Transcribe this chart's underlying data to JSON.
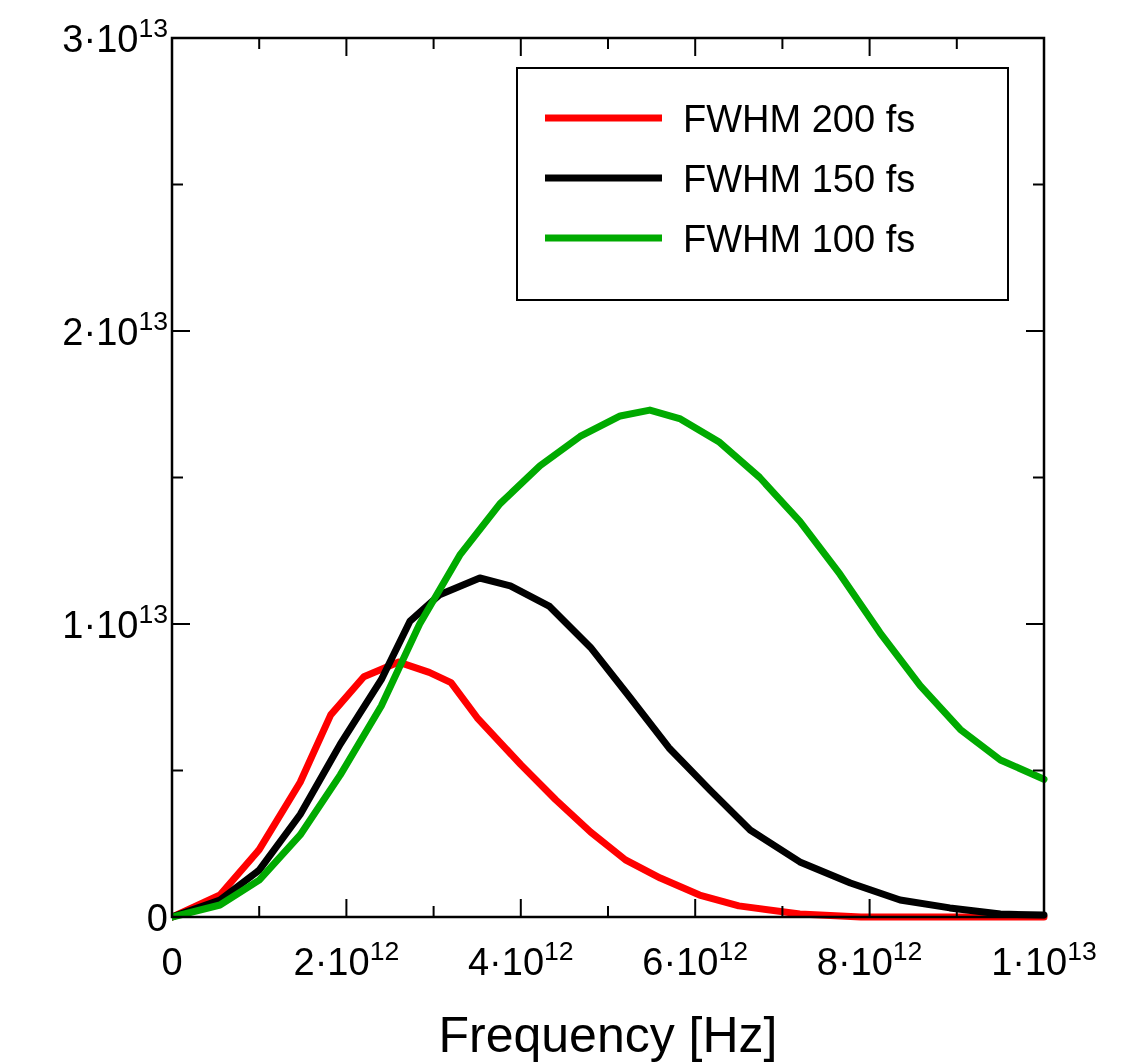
{
  "chart_data": {
    "type": "line",
    "xlabel": "Frequency [Hz]",
    "xlim": [
      0,
      10000000000000.0
    ],
    "ylim": [
      0,
      30000000000000.0
    ],
    "xticks": [
      0,
      {
        "value": 1000000000000.0,
        "label": null
      },
      {
        "value": 2000000000000.0,
        "label": "2·10$^{12}$"
      },
      {
        "value": 3000000000000.0,
        "label": null
      },
      {
        "value": 4000000000000.0,
        "label": "4·10$^{12}$"
      },
      {
        "value": 5000000000000.0,
        "label": null
      },
      {
        "value": 6000000000000.0,
        "label": "6·10$^{12}$"
      },
      {
        "value": 7000000000000.0,
        "label": null
      },
      {
        "value": 8000000000000.0,
        "label": "8·10$^{12}$"
      },
      {
        "value": 9000000000000.0,
        "label": null
      },
      {
        "value": 10000000000000.0,
        "label": "1·10$^{13}$"
      }
    ],
    "yticks": [
      0,
      {
        "value": 5000000000000.0,
        "label": null
      },
      {
        "value": 10000000000000.0,
        "label": "1·10$^{13}$"
      },
      {
        "value": 15000000000000.0,
        "label": null
      },
      {
        "value": 20000000000000.0,
        "label": "2·10$^{13}$"
      },
      {
        "value": 25000000000000.0,
        "label": null
      },
      {
        "value": 30000000000000.0,
        "label": "3·10$^{13}$"
      }
    ],
    "legend": "top right",
    "grid": false,
    "marker": "none",
    "line_style": "solid",
    "series": [
      {
        "name": "FWHM 200 fs",
        "color": "#ff0000",
        "x": [
          0,
          550000000000.0,
          1000000000000.0,
          1470000000000.0,
          1820000000000.0,
          2200000000000.0,
          2600000000000.0,
          2950000000000.0,
          3200000000000.0,
          3500000000000.0,
          4000000000000.0,
          4400000000000.0,
          4800000000000.0,
          5200000000000.0,
          5600000000000.0,
          6050000000000.0,
          6500000000000.0,
          7200000000000.0,
          7900000000000.0,
          10000000000000.0
        ],
        "values": [
          0,
          750000000000.0,
          2300000000000.0,
          4600000000000.0,
          6900000000000.0,
          8200000000000.0,
          8700000000000.0,
          8350000000000.0,
          8000000000000.0,
          6800000000000.0,
          5200000000000.0,
          4000000000000.0,
          2900000000000.0,
          1950000000000.0,
          1330000000000.0,
          750000000000.0,
          380000000000.0,
          100000000000.0,
          0,
          0
        ]
      },
      {
        "name": "FWHM 150 fs",
        "color": "#000000",
        "x": [
          0,
          550000000000.0,
          1000000000000.0,
          1470000000000.0,
          1930000000000.0,
          2400000000000.0,
          2730000000000.0,
          3070000000000.0,
          3530000000000.0,
          3880000000000.0,
          4330000000000.0,
          4800000000000.0,
          5250000000000.0,
          5700000000000.0,
          6170000000000.0,
          6630000000000.0,
          7200000000000.0,
          7780000000000.0,
          8350000000000.0,
          8920000000000.0,
          9500000000000.0,
          10000000000000.0
        ],
        "values": [
          0,
          580000000000.0,
          1600000000000.0,
          3500000000000.0,
          5900000000000.0,
          8100000000000.0,
          10100000000000.0,
          11000000000000.0,
          11570000000000.0,
          11300000000000.0,
          10600000000000.0,
          9200000000000.0,
          7500000000000.0,
          5770000000000.0,
          4330000000000.0,
          2970000000000.0,
          1880000000000.0,
          1160000000000.0,
          580000000000.0,
          310000000000.0,
          100000000000.0,
          70000000000.0
        ]
      },
      {
        "name": "FWHM 100 fs",
        "color": "#00aa00",
        "x": [
          0,
          550000000000.0,
          1000000000000.0,
          1470000000000.0,
          1930000000000.0,
          2400000000000.0,
          2840000000000.0,
          3300000000000.0,
          3760000000000.0,
          4220000000000.0,
          4680000000000.0,
          5140000000000.0,
          5480000000000.0,
          5830000000000.0,
          6280000000000.0,
          6740000000000.0,
          7200000000000.0,
          7660000000000.0,
          8120000000000.0,
          8580000000000.0,
          9040000000000.0,
          9500000000000.0,
          10000000000000.0
        ],
        "values": [
          0,
          410000000000.0,
          1260000000000.0,
          2800000000000.0,
          4850000000000.0,
          7200000000000.0,
          10000000000000.0,
          12350000000000.0,
          14100000000000.0,
          15400000000000.0,
          16400000000000.0,
          17100000000000.0,
          17300000000000.0,
          17000000000000.0,
          16200000000000.0,
          15000000000000.0,
          13500000000000.0,
          11700000000000.0,
          9700000000000.0,
          7900000000000.0,
          6400000000000.0,
          5360000000000.0,
          4700000000000.0
        ]
      }
    ]
  }
}
